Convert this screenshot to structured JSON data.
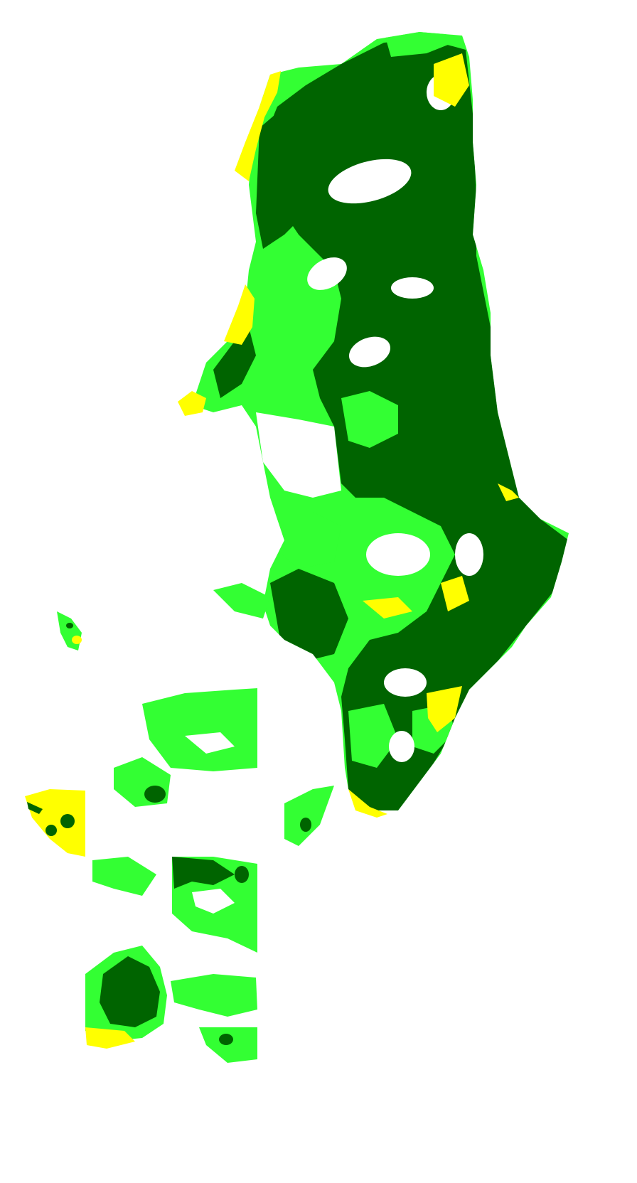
{
  "map": {
    "type": "thematic-raster-classification",
    "background_color": "#ffffff",
    "legend_visible": false,
    "classes": [
      {
        "id": "dense",
        "color": "#006400"
      },
      {
        "id": "medium",
        "color": "#33ff33"
      },
      {
        "id": "sparse",
        "color": "#ffff00"
      },
      {
        "id": "none",
        "color": "#ffffff"
      }
    ]
  }
}
